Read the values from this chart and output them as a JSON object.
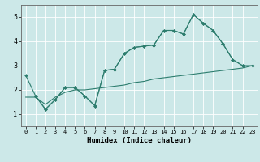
{
  "xlabel": "Humidex (Indice chaleur)",
  "xlim": [
    -0.5,
    23.5
  ],
  "ylim": [
    0.5,
    5.5
  ],
  "xticks": [
    0,
    1,
    2,
    3,
    4,
    5,
    6,
    7,
    8,
    9,
    10,
    11,
    12,
    13,
    14,
    15,
    16,
    17,
    18,
    19,
    20,
    21,
    22,
    23
  ],
  "yticks": [
    1,
    2,
    3,
    4,
    5
  ],
  "bg_color": "#cce8e8",
  "grid_color": "#ffffff",
  "line_color": "#2d7d6e",
  "line1_x": [
    0,
    1,
    2,
    3,
    4,
    5,
    6,
    7,
    8,
    9,
    10,
    11,
    12,
    13,
    14,
    15,
    16,
    17,
    18,
    19,
    20,
    21,
    22
  ],
  "line1_y": [
    2.6,
    1.75,
    1.2,
    1.6,
    2.1,
    2.1,
    1.75,
    1.35,
    2.8,
    2.85,
    3.5,
    3.75,
    3.8,
    3.85,
    4.45,
    4.45,
    4.3,
    5.1,
    4.75,
    4.45,
    3.9,
    3.25,
    3.0
  ],
  "line2_x": [
    1,
    2,
    3,
    4,
    5,
    6,
    7,
    8,
    9,
    10,
    11,
    12,
    13,
    14,
    15,
    16,
    17,
    18,
    19,
    20,
    21,
    22,
    23
  ],
  "line2_y": [
    1.75,
    1.2,
    1.6,
    2.1,
    2.1,
    1.75,
    1.35,
    2.8,
    2.85,
    3.5,
    3.75,
    3.8,
    3.85,
    4.45,
    4.45,
    4.3,
    5.1,
    4.75,
    4.45,
    3.9,
    3.25,
    3.0,
    3.0
  ],
  "line3_x": [
    0,
    1,
    2,
    3,
    4,
    5,
    6,
    7,
    8,
    9,
    10,
    11,
    12,
    13,
    14,
    15,
    16,
    17,
    18,
    19,
    20,
    21,
    22,
    23
  ],
  "line3_y": [
    1.7,
    1.7,
    1.4,
    1.7,
    1.9,
    2.0,
    2.0,
    2.05,
    2.1,
    2.15,
    2.2,
    2.3,
    2.35,
    2.45,
    2.5,
    2.55,
    2.6,
    2.65,
    2.7,
    2.75,
    2.8,
    2.85,
    2.9,
    3.0
  ]
}
